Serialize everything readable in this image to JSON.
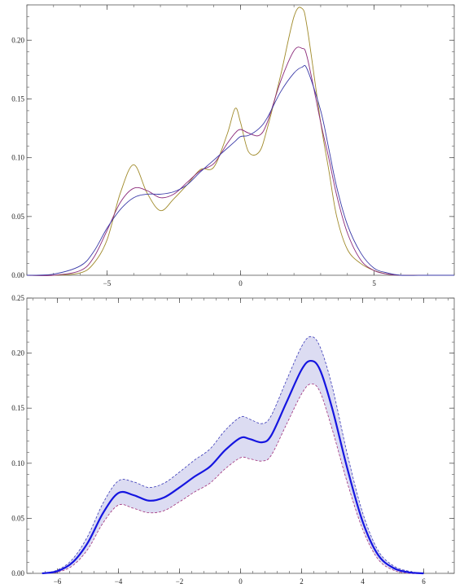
{
  "colors": {
    "frame": "#555555",
    "top_series": [
      "#a08a2a",
      "#8b2a7a",
      "#3a3aa8"
    ],
    "band_fill": "#dcdcf2",
    "band_upper": "#3a3ab8",
    "band_lower": "#a0307a",
    "mean_line": "#1515e0"
  },
  "chart_data": [
    {
      "type": "line",
      "title": "",
      "xlabel": "",
      "ylabel": "",
      "xlim": [
        -8,
        8
      ],
      "ylim": [
        0,
        0.23
      ],
      "grid": false,
      "legend": "none",
      "xticks": [
        {
          "value": -5,
          "label": "−5"
        },
        {
          "value": 0,
          "label": "0"
        },
        {
          "value": 5,
          "label": "5"
        }
      ],
      "yticks": [
        {
          "value": 0,
          "label": "0.00"
        },
        {
          "value": 0.05,
          "label": "0.05"
        },
        {
          "value": 0.1,
          "label": "0.10"
        },
        {
          "value": 0.15,
          "label": "0.15"
        },
        {
          "value": 0.2,
          "label": "0.20"
        }
      ],
      "x": [
        -8.0,
        -7.0,
        -6.0,
        -5.5,
        -5.0,
        -4.5,
        -4.0,
        -3.5,
        -3.0,
        -2.5,
        -2.0,
        -1.5,
        -1.0,
        -0.5,
        -0.2,
        0.0,
        0.3,
        0.7,
        1.0,
        1.5,
        2.0,
        2.3,
        2.5,
        3.0,
        3.3,
        3.6,
        4.0,
        4.5,
        5.0,
        5.5,
        6.0,
        7.0,
        8.0
      ],
      "series": [
        {
          "values": [
            0.0,
            0.0,
            0.002,
            0.01,
            0.03,
            0.07,
            0.094,
            0.07,
            0.055,
            0.065,
            0.077,
            0.09,
            0.092,
            0.12,
            0.142,
            0.13,
            0.105,
            0.105,
            0.125,
            0.17,
            0.22,
            0.227,
            0.21,
            0.13,
            0.09,
            0.05,
            0.022,
            0.01,
            0.004,
            0.001,
            0.0,
            0.0,
            0.0
          ]
        },
        {
          "values": [
            0.0,
            0.0,
            0.004,
            0.015,
            0.038,
            0.062,
            0.074,
            0.072,
            0.066,
            0.069,
            0.079,
            0.089,
            0.095,
            0.112,
            0.121,
            0.124,
            0.121,
            0.119,
            0.13,
            0.165,
            0.191,
            0.193,
            0.185,
            0.13,
            0.1,
            0.068,
            0.036,
            0.013,
            0.004,
            0.001,
            0.0,
            0.0,
            0.0
          ]
        },
        {
          "values": [
            0.0,
            0.001,
            0.008,
            0.02,
            0.04,
            0.056,
            0.066,
            0.069,
            0.069,
            0.071,
            0.077,
            0.088,
            0.098,
            0.108,
            0.114,
            0.118,
            0.119,
            0.125,
            0.134,
            0.156,
            0.172,
            0.177,
            0.175,
            0.14,
            0.108,
            0.075,
            0.043,
            0.019,
            0.006,
            0.002,
            0.0,
            0.0,
            0.0
          ]
        }
      ]
    },
    {
      "type": "area",
      "title": "",
      "xlabel": "",
      "ylabel": "",
      "xlim": [
        -7,
        7
      ],
      "ylim": [
        0,
        0.25
      ],
      "grid": false,
      "legend": "none",
      "xticks": [
        {
          "value": -6,
          "label": "−6"
        },
        {
          "value": -4,
          "label": "−4"
        },
        {
          "value": -2,
          "label": "−2"
        },
        {
          "value": 0,
          "label": "0"
        },
        {
          "value": 2,
          "label": "2"
        },
        {
          "value": 4,
          "label": "4"
        },
        {
          "value": 6,
          "label": "6"
        }
      ],
      "yticks": [
        {
          "value": 0,
          "label": "0.00"
        },
        {
          "value": 0.05,
          "label": "0.05"
        },
        {
          "value": 0.1,
          "label": "0.10"
        },
        {
          "value": 0.15,
          "label": "0.15"
        },
        {
          "value": 0.2,
          "label": "0.20"
        },
        {
          "value": 0.25,
          "label": "0.25"
        }
      ],
      "x": [
        -6.5,
        -6.0,
        -5.5,
        -5.0,
        -4.5,
        -4.0,
        -3.5,
        -3.0,
        -2.5,
        -2.0,
        -1.5,
        -1.0,
        -0.5,
        0.0,
        0.3,
        0.7,
        1.0,
        1.5,
        2.0,
        2.3,
        2.6,
        3.0,
        3.5,
        4.0,
        4.5,
        5.0,
        5.5,
        6.0
      ],
      "series": [
        {
          "role": "mean",
          "values": [
            0.0,
            0.002,
            0.01,
            0.028,
            0.055,
            0.073,
            0.071,
            0.066,
            0.069,
            0.078,
            0.088,
            0.097,
            0.112,
            0.123,
            0.122,
            0.119,
            0.125,
            0.155,
            0.185,
            0.193,
            0.185,
            0.15,
            0.095,
            0.047,
            0.017,
            0.005,
            0.001,
            0.0
          ]
        },
        {
          "role": "upper",
          "values": [
            0.0,
            0.003,
            0.013,
            0.034,
            0.064,
            0.084,
            0.083,
            0.078,
            0.082,
            0.092,
            0.103,
            0.113,
            0.13,
            0.142,
            0.14,
            0.136,
            0.143,
            0.175,
            0.206,
            0.215,
            0.206,
            0.17,
            0.108,
            0.055,
            0.021,
            0.007,
            0.002,
            0.0
          ]
        },
        {
          "role": "lower",
          "values": [
            0.0,
            0.001,
            0.007,
            0.022,
            0.046,
            0.062,
            0.059,
            0.055,
            0.057,
            0.065,
            0.074,
            0.082,
            0.095,
            0.105,
            0.104,
            0.102,
            0.107,
            0.135,
            0.163,
            0.172,
            0.165,
            0.131,
            0.082,
            0.04,
            0.013,
            0.003,
            0.0,
            0.0
          ]
        }
      ]
    }
  ]
}
